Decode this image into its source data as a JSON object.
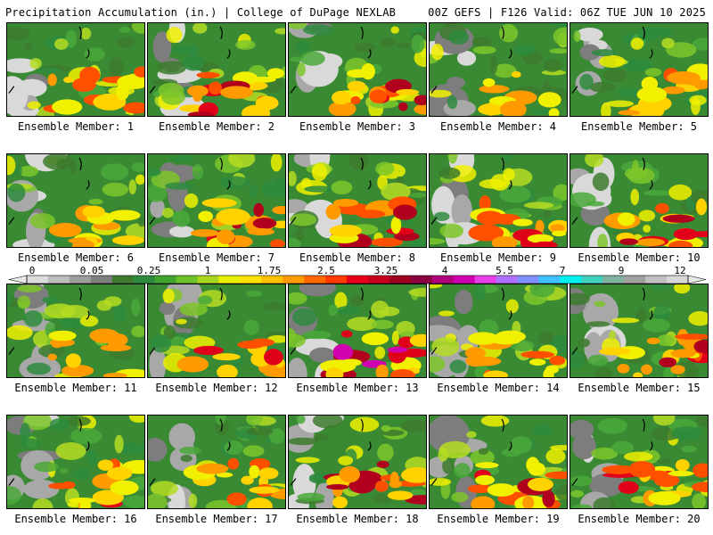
{
  "header": {
    "left": "Precipitation Accumulation (in.) | College of DuPage NEXLAB",
    "right": "00Z GEFS | F126 Valid: 06Z TUE JUN 10 2025"
  },
  "colorbar": {
    "tick_labels": [
      "0",
      "0.05",
      "0.25",
      "1",
      "1.75",
      "2.5",
      "3.25",
      "4",
      "5.5",
      "7",
      "9",
      "12"
    ],
    "colors": [
      "#dcdcdc",
      "#bdbdbd",
      "#9e9e9e",
      "#7f7f7f",
      "#3d7a2e",
      "#2e8b3e",
      "#3fa52f",
      "#6bc22a",
      "#a8d61e",
      "#e8f000",
      "#ffe000",
      "#ffc000",
      "#ff9a00",
      "#ff6a00",
      "#ff3a00",
      "#e8001a",
      "#c8001e",
      "#a00020",
      "#8b0040",
      "#b0007a",
      "#d000b0",
      "#e840e8",
      "#b070ff",
      "#8090ff",
      "#40c0ff",
      "#00f0f0",
      "#40d0c0",
      "#80b0a0",
      "#a0a0a0",
      "#c0c0c0",
      "#d8d8d8"
    ]
  },
  "members": [
    {
      "label": "Ensemble Member: 1",
      "intensity": 0.55
    },
    {
      "label": "Ensemble Member: 2",
      "intensity": 0.8
    },
    {
      "label": "Ensemble Member: 3",
      "intensity": 0.8
    },
    {
      "label": "Ensemble Member: 4",
      "intensity": 0.35
    },
    {
      "label": "Ensemble Member: 5",
      "intensity": 0.5
    },
    {
      "label": "Ensemble Member: 6",
      "intensity": 0.35
    },
    {
      "label": "Ensemble Member: 7",
      "intensity": 0.85
    },
    {
      "label": "Ensemble Member: 8",
      "intensity": 0.75
    },
    {
      "label": "Ensemble Member: 9",
      "intensity": 0.7
    },
    {
      "label": "Ensemble Member: 10",
      "intensity": 0.75
    },
    {
      "label": "Ensemble Member: 11",
      "intensity": 0.4
    },
    {
      "label": "Ensemble Member: 12",
      "intensity": 0.65
    },
    {
      "label": "Ensemble Member: 13",
      "intensity": 0.9
    },
    {
      "label": "Ensemble Member: 14",
      "intensity": 0.55
    },
    {
      "label": "Ensemble Member: 15",
      "intensity": 0.8
    },
    {
      "label": "Ensemble Member: 16",
      "intensity": 0.7
    },
    {
      "label": "Ensemble Member: 17",
      "intensity": 0.7
    },
    {
      "label": "Ensemble Member: 18",
      "intensity": 0.85
    },
    {
      "label": "Ensemble Member: 19",
      "intensity": 0.75
    },
    {
      "label": "Ensemble Member: 20",
      "intensity": 0.7
    }
  ]
}
